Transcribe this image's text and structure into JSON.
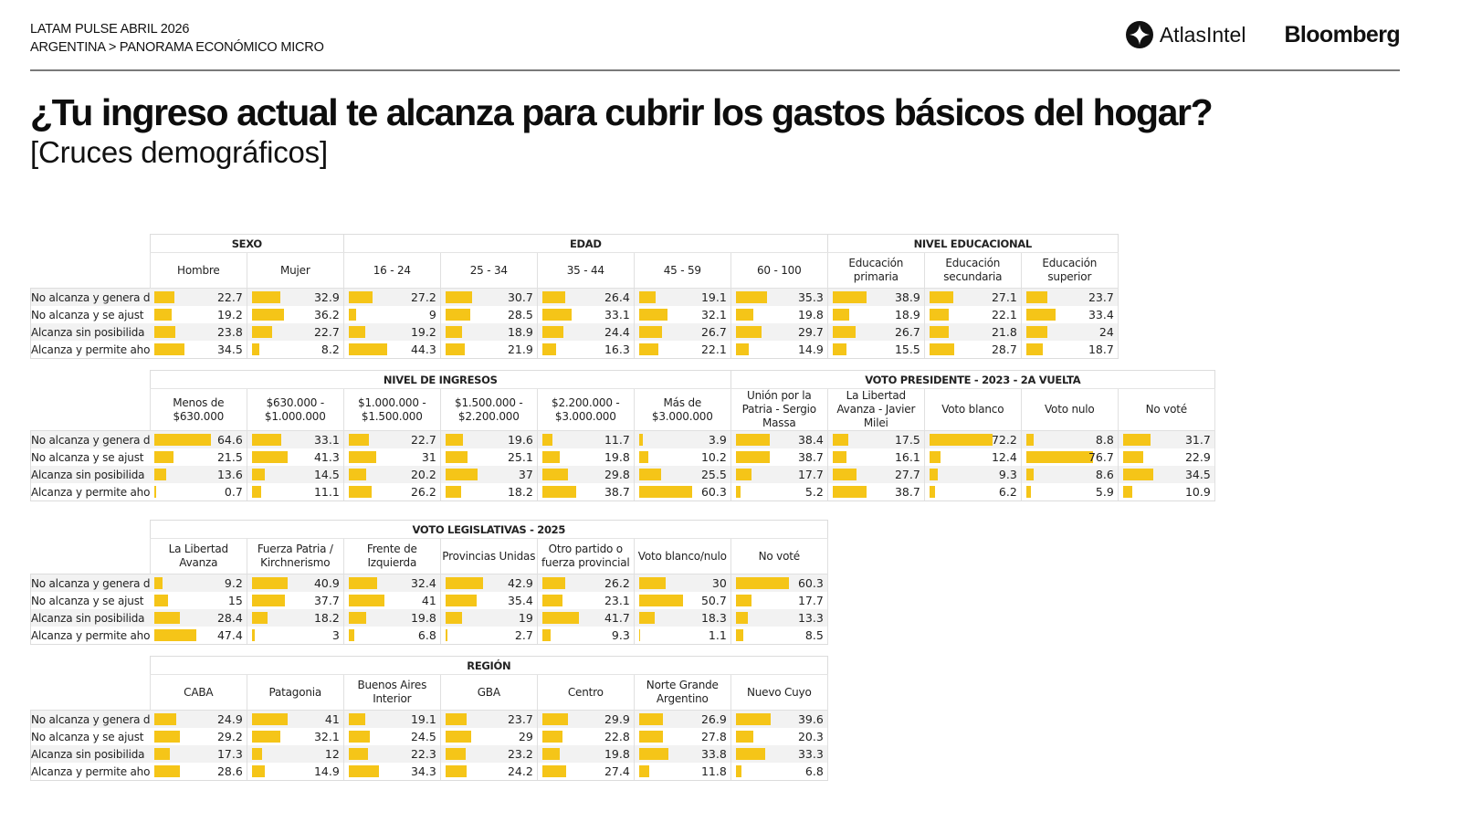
{
  "header": {
    "line1": "LATAM PULSE ABRIL 2026",
    "line2": "ARGENTINA > PANORAMA ECONÓMICO MICRO",
    "logo_atlas": "AtlasIntel",
    "logo_bloomberg": "Bloomberg",
    "title": "¿Tu ingreso actual te alcanza para cubrir los gastos básicos del hogar?",
    "subtitle": "[Cruces demográficos]"
  },
  "colors": {
    "bar": "#F5C518",
    "row_alt": "#f2f2f2",
    "grid": "#dcdcdc"
  },
  "chart_data": {
    "type": "table",
    "title": "¿Tu ingreso actual te alcanza para cubrir los gastos básicos del hogar?",
    "subtitle": "[Cruces demográficos]",
    "units": "%",
    "row_labels": [
      "No alcanza y genera d",
      "No alcanza y se ajust",
      "Alcanza sin posibilida",
      "Alcanza y permite aho"
    ],
    "blocks": [
      {
        "groups": [
          {
            "name": "SEXO",
            "columns": [
              {
                "label": "Hombre",
                "values": [
                  22.7,
                  19.2,
                  23.8,
                  34.5
                ]
              },
              {
                "label": "Mujer",
                "values": [
                  32.9,
                  36.2,
                  22.7,
                  8.2
                ]
              }
            ]
          },
          {
            "name": "EDAD",
            "columns": [
              {
                "label": "16 - 24",
                "values": [
                  27.2,
                  9,
                  19.2,
                  44.3
                ]
              },
              {
                "label": "25 - 34",
                "values": [
                  30.7,
                  28.5,
                  18.9,
                  21.9
                ]
              },
              {
                "label": "35 - 44",
                "values": [
                  26.4,
                  33.1,
                  24.4,
                  16.3
                ]
              },
              {
                "label": "45 - 59",
                "values": [
                  19.1,
                  32.1,
                  26.7,
                  22.1
                ]
              },
              {
                "label": "60 - 100",
                "values": [
                  35.3,
                  19.8,
                  29.7,
                  14.9
                ]
              }
            ]
          },
          {
            "name": "NIVEL EDUCACIONAL",
            "columns": [
              {
                "label": "Educación primaria",
                "values": [
                  38.9,
                  18.9,
                  26.7,
                  15.5
                ]
              },
              {
                "label": "Educación secundaria",
                "values": [
                  27.1,
                  22.1,
                  21.8,
                  28.7
                ]
              },
              {
                "label": "Educación superior",
                "values": [
                  23.7,
                  33.4,
                  24,
                  18.7
                ]
              }
            ]
          }
        ]
      },
      {
        "groups": [
          {
            "name": "NIVEL DE INGRESOS",
            "columns": [
              {
                "label": "Menos de $630.000",
                "values": [
                  64.6,
                  21.5,
                  13.6,
                  0.7
                ]
              },
              {
                "label": "$630.000 - $1.000.000",
                "values": [
                  33.1,
                  41.3,
                  14.5,
                  11.1
                ]
              },
              {
                "label": "$1.000.000 - $1.500.000",
                "values": [
                  22.7,
                  31,
                  20.2,
                  26.2
                ]
              },
              {
                "label": "$1.500.000 - $2.200.000",
                "values": [
                  19.6,
                  25.1,
                  37,
                  18.2
                ]
              },
              {
                "label": "$2.200.000 - $3.000.000",
                "values": [
                  11.7,
                  19.8,
                  29.8,
                  38.7
                ]
              },
              {
                "label": "Más de $3.000.000",
                "values": [
                  3.9,
                  10.2,
                  25.5,
                  60.3
                ]
              }
            ]
          },
          {
            "name": "VOTO PRESIDENTE - 2023 - 2A VUELTA",
            "columns": [
              {
                "label": "Unión por la Patria - Sergio Massa",
                "values": [
                  38.4,
                  38.7,
                  17.7,
                  5.2
                ]
              },
              {
                "label": "La Libertad Avanza - Javier Milei",
                "values": [
                  17.5,
                  16.1,
                  27.7,
                  38.7
                ]
              },
              {
                "label": "Voto blanco",
                "values": [
                  72.2,
                  12.4,
                  9.3,
                  6.2
                ]
              },
              {
                "label": "Voto nulo",
                "values": [
                  8.8,
                  76.7,
                  8.6,
                  5.9
                ]
              },
              {
                "label": "No voté",
                "values": [
                  31.7,
                  22.9,
                  34.5,
                  10.9
                ]
              }
            ]
          }
        ]
      },
      {
        "groups": [
          {
            "name": "VOTO LEGISLATIVAS - 2025",
            "columns": [
              {
                "label": "La Libertad Avanza",
                "values": [
                  9.2,
                  15,
                  28.4,
                  47.4
                ]
              },
              {
                "label": "Fuerza Patria / Kirchnerismo",
                "values": [
                  40.9,
                  37.7,
                  18.2,
                  3
                ]
              },
              {
                "label": "Frente de Izquierda",
                "values": [
                  32.4,
                  41,
                  19.8,
                  6.8
                ]
              },
              {
                "label": "Provincias Unidas",
                "values": [
                  42.9,
                  35.4,
                  19,
                  2.7
                ]
              },
              {
                "label": "Otro partido o fuerza provincial",
                "values": [
                  26.2,
                  23.1,
                  41.7,
                  9.3
                ]
              },
              {
                "label": "Voto blanco/nulo",
                "values": [
                  30,
                  50.7,
                  18.3,
                  1.1
                ]
              },
              {
                "label": "No voté",
                "values": [
                  60.3,
                  17.7,
                  13.3,
                  8.5
                ]
              }
            ]
          }
        ]
      },
      {
        "groups": [
          {
            "name": "REGIÓN",
            "columns": [
              {
                "label": "CABA",
                "values": [
                  24.9,
                  29.2,
                  17.3,
                  28.6
                ]
              },
              {
                "label": "Patagonia",
                "values": [
                  41,
                  32.1,
                  12,
                  14.9
                ]
              },
              {
                "label": "Buenos Aires Interior",
                "values": [
                  19.1,
                  24.5,
                  22.3,
                  34.3
                ]
              },
              {
                "label": "GBA",
                "values": [
                  23.7,
                  29,
                  23.2,
                  24.2
                ]
              },
              {
                "label": "Centro",
                "values": [
                  29.9,
                  22.8,
                  19.8,
                  27.4
                ]
              },
              {
                "label": "Norte Grande Argentino",
                "values": [
                  26.9,
                  27.8,
                  33.8,
                  11.8
                ]
              },
              {
                "label": "Nuevo Cuyo",
                "values": [
                  39.6,
                  20.3,
                  33.3,
                  6.8
                ]
              }
            ]
          }
        ]
      }
    ]
  }
}
